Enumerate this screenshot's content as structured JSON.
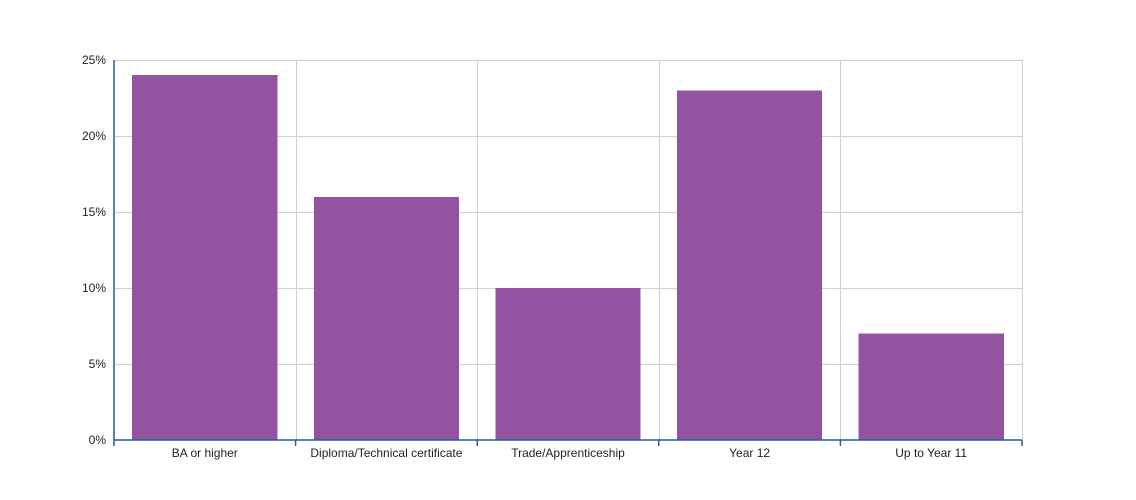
{
  "chart_data": {
    "type": "bar",
    "categories": [
      "BA or higher",
      "Diploma/Technical certificate",
      "Trade/Apprenticeship",
      "Year 12",
      "Up to Year 11"
    ],
    "values": [
      24,
      16,
      10,
      23,
      7
    ],
    "ylim": [
      0,
      25
    ],
    "yticks": [
      "0%",
      "5%",
      "10%",
      "15%",
      "20%",
      "25%"
    ],
    "ytick_values": [
      0,
      5,
      10,
      15,
      20,
      25
    ],
    "grid": true,
    "legend": "none",
    "colors": {
      "bar": "#9353a0",
      "grid": "#d0d0d0",
      "axis": "#1f5f9a",
      "text": "#222222"
    }
  }
}
